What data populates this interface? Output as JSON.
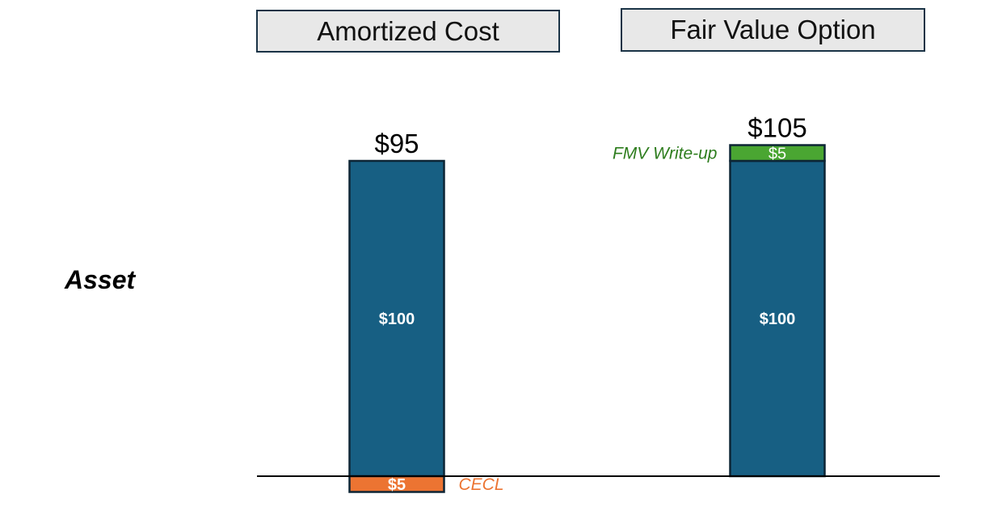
{
  "headers": {
    "left": "Amortized Cost",
    "right": "Fair Value Option"
  },
  "row_label": "Asset",
  "colors": {
    "base": "#175f83",
    "cecl": "#ec7432",
    "writeup": "#4aa632",
    "writeup_text": "#2e7d1e",
    "cecl_text": "#ec7432",
    "border": "#0d2535"
  },
  "chart_data": {
    "type": "bar",
    "stacked": true,
    "categories": [
      "Amortized Cost",
      "Fair Value Option"
    ],
    "series": [
      {
        "name": "",
        "values": [
          100,
          100
        ],
        "labels": [
          "$100",
          "$100"
        ],
        "color": "#175f83"
      },
      {
        "name": "CECL",
        "values": [
          -5,
          0
        ],
        "labels": [
          "$5",
          ""
        ],
        "color": "#ec7432"
      },
      {
        "name": "FMV Write-up",
        "values": [
          0,
          5
        ],
        "labels": [
          "",
          "$5"
        ],
        "color": "#4aa632"
      }
    ],
    "totals": [
      "$95",
      "$105"
    ],
    "annotations": [
      {
        "text": "CECL",
        "category": "Amortized Cost",
        "series": "CECL",
        "side": "right"
      },
      {
        "text": "FMV Write-up",
        "category": "Fair Value Option",
        "series": "FMV Write-up",
        "side": "left"
      }
    ],
    "ylim": [
      -5,
      105
    ],
    "grid": false,
    "title": "",
    "xlabel": "",
    "ylabel": ""
  }
}
